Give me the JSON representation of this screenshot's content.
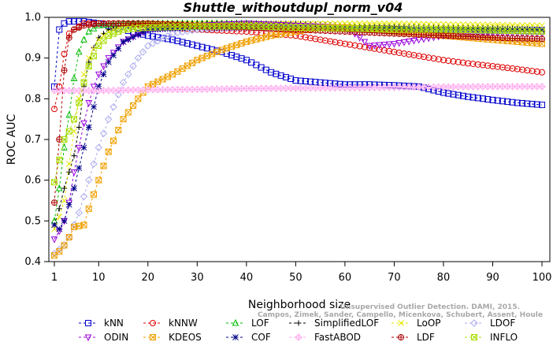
{
  "chart_data": {
    "type": "line",
    "title": "Shuttle_withoutdupl_norm_v04",
    "xlabel": "Neighborhood size",
    "ylabel": "ROC AUC",
    "xlim": [
      1,
      100
    ],
    "ylim": [
      0.4,
      1.0
    ],
    "xticks": [
      1,
      10,
      20,
      30,
      40,
      50,
      60,
      70,
      80,
      90,
      100
    ],
    "yticks": [
      0.4,
      0.5,
      0.6,
      0.7,
      0.8,
      0.9,
      1.0
    ],
    "grid": false,
    "legend_position": "bottom",
    "watermark": [
      "Unsupervised Outlier Detection. DAMI, 2015.",
      "Campos, Zimek, Sander, Campello, Micenkova, Schubert, Assent, Houle"
    ],
    "series": [
      {
        "name": "kNN",
        "color": "#0000cc",
        "marker": "square",
        "points": [
          [
            1,
            0.83
          ],
          [
            2,
            0.97
          ],
          [
            3,
            0.985
          ],
          [
            4,
            0.99
          ],
          [
            5,
            0.99
          ],
          [
            7,
            0.99
          ],
          [
            10,
            0.985
          ],
          [
            15,
            0.97
          ],
          [
            20,
            0.955
          ],
          [
            25,
            0.945
          ],
          [
            30,
            0.93
          ],
          [
            35,
            0.915
          ],
          [
            40,
            0.895
          ],
          [
            45,
            0.865
          ],
          [
            50,
            0.845
          ],
          [
            55,
            0.84
          ],
          [
            60,
            0.835
          ],
          [
            65,
            0.835
          ],
          [
            70,
            0.833
          ],
          [
            75,
            0.83
          ],
          [
            80,
            0.815
          ],
          [
            85,
            0.805
          ],
          [
            90,
            0.797
          ],
          [
            95,
            0.79
          ],
          [
            100,
            0.785
          ]
        ]
      },
      {
        "name": "kNNW",
        "color": "#dd0000",
        "marker": "circle",
        "points": [
          [
            1,
            0.775
          ],
          [
            2,
            0.83
          ],
          [
            3,
            0.91
          ],
          [
            4,
            0.96
          ],
          [
            5,
            0.97
          ],
          [
            7,
            0.985
          ],
          [
            10,
            0.985
          ],
          [
            15,
            0.985
          ],
          [
            20,
            0.98
          ],
          [
            30,
            0.97
          ],
          [
            40,
            0.965
          ],
          [
            50,
            0.955
          ],
          [
            55,
            0.945
          ],
          [
            60,
            0.935
          ],
          [
            65,
            0.925
          ],
          [
            70,
            0.915
          ],
          [
            75,
            0.905
          ],
          [
            80,
            0.895
          ],
          [
            85,
            0.887
          ],
          [
            90,
            0.88
          ],
          [
            95,
            0.873
          ],
          [
            100,
            0.865
          ]
        ]
      },
      {
        "name": "LOF",
        "color": "#00bb00",
        "marker": "triangle-up",
        "points": [
          [
            1,
            0.5
          ],
          [
            2,
            0.58
          ],
          [
            3,
            0.68
          ],
          [
            4,
            0.76
          ],
          [
            5,
            0.85
          ],
          [
            6,
            0.915
          ],
          [
            7,
            0.945
          ],
          [
            8,
            0.965
          ],
          [
            10,
            0.98
          ],
          [
            15,
            0.985
          ],
          [
            20,
            0.985
          ],
          [
            30,
            0.985
          ],
          [
            40,
            0.985
          ],
          [
            50,
            0.98
          ],
          [
            60,
            0.975
          ],
          [
            70,
            0.97
          ],
          [
            80,
            0.97
          ],
          [
            90,
            0.968
          ],
          [
            100,
            0.965
          ]
        ]
      },
      {
        "name": "SimplifiedLOF",
        "color": "#000000",
        "marker": "plus",
        "points": [
          [
            1,
            0.49
          ],
          [
            2,
            0.53
          ],
          [
            3,
            0.58
          ],
          [
            4,
            0.62
          ],
          [
            5,
            0.66
          ],
          [
            6,
            0.73
          ],
          [
            7,
            0.83
          ],
          [
            8,
            0.89
          ],
          [
            9,
            0.925
          ],
          [
            10,
            0.95
          ],
          [
            12,
            0.97
          ],
          [
            15,
            0.98
          ],
          [
            20,
            0.985
          ],
          [
            30,
            0.985
          ],
          [
            40,
            0.985
          ],
          [
            50,
            0.985
          ],
          [
            60,
            0.98
          ],
          [
            70,
            0.978
          ],
          [
            80,
            0.975
          ],
          [
            90,
            0.975
          ],
          [
            100,
            0.97
          ]
        ]
      },
      {
        "name": "LoOP",
        "color": "#e6e600",
        "marker": "x",
        "points": [
          [
            1,
            0.48
          ],
          [
            2,
            0.51
          ],
          [
            3,
            0.55
          ],
          [
            4,
            0.64
          ],
          [
            5,
            0.72
          ],
          [
            6,
            0.8
          ],
          [
            7,
            0.86
          ],
          [
            8,
            0.9
          ],
          [
            10,
            0.945
          ],
          [
            12,
            0.965
          ],
          [
            15,
            0.98
          ],
          [
            20,
            0.985
          ],
          [
            30,
            0.985
          ],
          [
            40,
            0.985
          ],
          [
            50,
            0.985
          ],
          [
            60,
            0.985
          ],
          [
            70,
            0.985
          ],
          [
            80,
            0.983
          ],
          [
            90,
            0.982
          ],
          [
            100,
            0.98
          ]
        ]
      },
      {
        "name": "LDOF",
        "color": "#aaaaee",
        "marker": "diamond",
        "points": [
          [
            1,
            0.42
          ],
          [
            2,
            0.43
          ],
          [
            3,
            0.44
          ],
          [
            4,
            0.46
          ],
          [
            5,
            0.49
          ],
          [
            6,
            0.52
          ],
          [
            7,
            0.56
          ],
          [
            8,
            0.6
          ],
          [
            10,
            0.68
          ],
          [
            12,
            0.75
          ],
          [
            15,
            0.84
          ],
          [
            18,
            0.9
          ],
          [
            20,
            0.93
          ],
          [
            25,
            0.96
          ],
          [
            30,
            0.97
          ],
          [
            40,
            0.975
          ],
          [
            50,
            0.975
          ],
          [
            60,
            0.972
          ],
          [
            70,
            0.97
          ],
          [
            80,
            0.968
          ],
          [
            90,
            0.966
          ],
          [
            100,
            0.965
          ]
        ]
      },
      {
        "name": "ODIN",
        "color": "#9900dd",
        "marker": "triangle-down",
        "points": [
          [
            1,
            0.455
          ],
          [
            2,
            0.475
          ],
          [
            3,
            0.5
          ],
          [
            4,
            0.545
          ],
          [
            5,
            0.62
          ],
          [
            6,
            0.68
          ],
          [
            7,
            0.74
          ],
          [
            8,
            0.79
          ],
          [
            9,
            0.83
          ],
          [
            10,
            0.86
          ],
          [
            12,
            0.9
          ],
          [
            15,
            0.94
          ],
          [
            20,
            0.97
          ],
          [
            30,
            0.98
          ],
          [
            40,
            0.985
          ],
          [
            50,
            0.98
          ],
          [
            60,
            0.975
          ],
          [
            62,
            0.96
          ],
          [
            65,
            0.93
          ],
          [
            70,
            0.935
          ],
          [
            75,
            0.945
          ],
          [
            80,
            0.955
          ],
          [
            90,
            0.96
          ],
          [
            100,
            0.96
          ]
        ]
      },
      {
        "name": "KDEOS",
        "color": "#f0a000",
        "marker": "square-x",
        "points": [
          [
            1,
            0.415
          ],
          [
            2,
            0.425
          ],
          [
            3,
            0.44
          ],
          [
            4,
            0.46
          ],
          [
            5,
            0.485
          ],
          [
            7,
            0.49
          ],
          [
            8,
            0.53
          ],
          [
            10,
            0.6
          ],
          [
            12,
            0.67
          ],
          [
            15,
            0.75
          ],
          [
            18,
            0.8
          ],
          [
            20,
            0.83
          ],
          [
            25,
            0.86
          ],
          [
            30,
            0.895
          ],
          [
            35,
            0.92
          ],
          [
            40,
            0.94
          ],
          [
            45,
            0.955
          ],
          [
            50,
            0.965
          ],
          [
            55,
            0.975
          ],
          [
            60,
            0.975
          ],
          [
            65,
            0.97
          ],
          [
            70,
            0.965
          ],
          [
            80,
            0.955
          ],
          [
            90,
            0.945
          ],
          [
            100,
            0.935
          ]
        ]
      },
      {
        "name": "COF",
        "color": "#000088",
        "marker": "star",
        "points": [
          [
            1,
            0.49
          ],
          [
            2,
            0.48
          ],
          [
            3,
            0.5
          ],
          [
            4,
            0.54
          ],
          [
            5,
            0.58
          ],
          [
            6,
            0.63
          ],
          [
            7,
            0.68
          ],
          [
            8,
            0.73
          ],
          [
            9,
            0.78
          ],
          [
            10,
            0.83
          ],
          [
            12,
            0.89
          ],
          [
            15,
            0.94
          ],
          [
            20,
            0.97
          ],
          [
            30,
            0.975
          ],
          [
            40,
            0.975
          ],
          [
            50,
            0.975
          ],
          [
            60,
            0.973
          ],
          [
            70,
            0.972
          ],
          [
            80,
            0.97
          ],
          [
            90,
            0.97
          ],
          [
            100,
            0.97
          ]
        ]
      },
      {
        "name": "FastABOD",
        "color": "#ffaaee",
        "marker": "diamond-plus",
        "points": [
          [
            1,
            0.82
          ],
          [
            5,
            0.82
          ],
          [
            10,
            0.82
          ],
          [
            20,
            0.822
          ],
          [
            30,
            0.823
          ],
          [
            40,
            0.825
          ],
          [
            50,
            0.826
          ],
          [
            60,
            0.827
          ],
          [
            70,
            0.828
          ],
          [
            80,
            0.829
          ],
          [
            90,
            0.83
          ],
          [
            100,
            0.83
          ]
        ]
      },
      {
        "name": "LDF",
        "color": "#aa0000",
        "marker": "circle-plus",
        "points": [
          [
            1,
            0.545
          ],
          [
            2,
            0.7
          ],
          [
            3,
            0.87
          ],
          [
            4,
            0.95
          ],
          [
            5,
            0.97
          ],
          [
            7,
            0.98
          ],
          [
            10,
            0.985
          ],
          [
            20,
            0.985
          ],
          [
            30,
            0.98
          ],
          [
            40,
            0.975
          ],
          [
            50,
            0.97
          ],
          [
            60,
            0.965
          ],
          [
            70,
            0.96
          ],
          [
            80,
            0.955
          ],
          [
            90,
            0.95
          ],
          [
            100,
            0.947
          ]
        ]
      },
      {
        "name": "INFLO",
        "color": "#aadd00",
        "marker": "square-x",
        "points": [
          [
            1,
            0.595
          ],
          [
            2,
            0.65
          ],
          [
            3,
            0.7
          ],
          [
            4,
            0.72
          ],
          [
            5,
            0.75
          ],
          [
            6,
            0.79
          ],
          [
            7,
            0.84
          ],
          [
            8,
            0.88
          ],
          [
            10,
            0.93
          ],
          [
            12,
            0.955
          ],
          [
            15,
            0.97
          ],
          [
            20,
            0.975
          ],
          [
            30,
            0.978
          ],
          [
            40,
            0.978
          ],
          [
            50,
            0.975
          ],
          [
            60,
            0.973
          ],
          [
            70,
            0.97
          ],
          [
            80,
            0.97
          ],
          [
            90,
            0.968
          ],
          [
            100,
            0.965
          ]
        ]
      }
    ]
  }
}
